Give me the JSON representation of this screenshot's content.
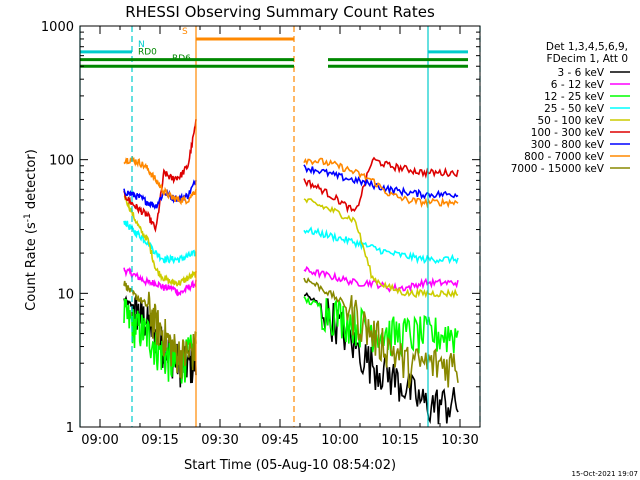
{
  "chart_data": {
    "type": "line",
    "title": "RHESSI Observing Summary Count Rates",
    "xlabel": "Start Time (05-Aug-10 08:54:02)",
    "ylabel_prefix": "Count Rate (s",
    "ylabel_sup": "-1",
    "ylabel_suffix": " detector",
    "ylabel_end": ")",
    "yscale": "log",
    "ylim": [
      1,
      1000
    ],
    "xlim_minutes": [
      -5.0,
      35.0
    ],
    "x_ticks": [
      "09:00",
      "09:15",
      "09:30",
      "09:45",
      "10:00",
      "10:15",
      "10:30"
    ],
    "x_tick_minutes": [
      0,
      15,
      30,
      45,
      60,
      75,
      90
    ],
    "y_ticks": [
      "1",
      "10",
      "100",
      "1000"
    ],
    "y_tick_values": [
      1,
      10,
      100,
      1000
    ],
    "legend_header": [
      "Det 1,3,4,5,6,9,",
      "FDecim 1, Att 0"
    ],
    "series": [
      {
        "name": "3 - 6 keV",
        "color": "#000000"
      },
      {
        "name": "6 - 12 keV",
        "color": "#ff00ff"
      },
      {
        "name": "12 - 25 keV",
        "color": "#00ff00"
      },
      {
        "name": "25 - 50 keV",
        "color": "#00ffff"
      },
      {
        "name": "50 - 100 keV",
        "color": "#cccc00"
      },
      {
        "name": "100 - 300 keV",
        "color": "#dd0000"
      },
      {
        "name": "300 - 800 keV",
        "color": "#0000ff"
      },
      {
        "name": "800 - 7000 keV",
        "color": "#ff8800"
      },
      {
        "name": "7000 - 15000 keV",
        "color": "#888800"
      }
    ],
    "segments": [
      {
        "start_min": 6.0,
        "end_min": 24.0,
        "values": {
          "3 - 6 keV": [
            9,
            8,
            7,
            6,
            5,
            4,
            3.5,
            3,
            3,
            3
          ],
          "6 - 12 keV": [
            15,
            14,
            13,
            12,
            12,
            11,
            11,
            10,
            11,
            12
          ],
          "12 - 25 keV": [
            7,
            6,
            5.5,
            5,
            4,
            3.5,
            3,
            3,
            3.5,
            4
          ],
          "25 - 50 keV": [
            35,
            30,
            27,
            24,
            20,
            18,
            18,
            18,
            19,
            20
          ],
          "50 - 100 keV": [
            55,
            40,
            30,
            25,
            15,
            13,
            12,
            12,
            13,
            14
          ],
          "100 - 300 keV": [
            55,
            47,
            42,
            38,
            30,
            80,
            72,
            75,
            90,
            190
          ],
          "300 - 800 keV": [
            58,
            55,
            52,
            48,
            45,
            57,
            52,
            51,
            54,
            70
          ],
          "800 - 7000 keV": [
            100,
            100,
            95,
            85,
            70,
            58,
            52,
            50,
            50,
            60
          ],
          "7000 - 15000 keV": [
            12,
            10,
            9,
            8,
            6,
            5,
            4,
            3.5,
            3.5,
            4
          ]
        }
      },
      {
        "start_min": 51.0,
        "end_min": 89.5,
        "values": {
          "3 - 6 keV": [
            10,
            8,
            6,
            4,
            3,
            2.5,
            2,
            1.5,
            1.5,
            1.5
          ],
          "6 - 12 keV": [
            15,
            14,
            13,
            12,
            12,
            11,
            11,
            12,
            12,
            12
          ],
          "12 - 25 keV": [
            9,
            8,
            7,
            6,
            5.5,
            5,
            5,
            5,
            5,
            5
          ],
          "25 - 50 keV": [
            30,
            28,
            26,
            24,
            22,
            20,
            19,
            18,
            18,
            18
          ],
          "50 - 100 keV": [
            50,
            45,
            40,
            35,
            13,
            11,
            10,
            10,
            10,
            10
          ],
          "100 - 300 keV": [
            70,
            60,
            50,
            40,
            100,
            90,
            85,
            80,
            80,
            80
          ],
          "300 - 800 keV": [
            88,
            82,
            75,
            70,
            65,
            60,
            57,
            55,
            55,
            55
          ],
          "800 - 7000 keV": [
            100,
            97,
            90,
            80,
            70,
            55,
            50,
            48,
            48,
            48
          ],
          "7000 - 15000 keV": [
            13,
            11,
            9,
            7,
            5,
            4,
            3,
            3,
            3,
            3
          ]
        }
      }
    ],
    "vlines": [
      {
        "min": 24.0,
        "color": "#ff8800",
        "style": "solid"
      },
      {
        "min": 48.5,
        "color": "#ff8800",
        "style": "dash"
      },
      {
        "min": 8.0,
        "color": "#00cccc",
        "style": "dash"
      },
      {
        "min": 82.0,
        "color": "#00cccc",
        "style": "solid"
      },
      {
        "min": 95.0,
        "color": "#00cccc",
        "style": "dash"
      },
      {
        "min": -5.0,
        "color": "#00cccc",
        "style": "solid"
      }
    ],
    "flag_lines": [
      {
        "label": "S",
        "color": "#ff8800",
        "y_value": 800,
        "ranges": [
          [
            24.0,
            48.5
          ]
        ]
      },
      {
        "label": "N",
        "color": "#00cccc",
        "y_value": 640,
        "ranges": [
          [
            -5.0,
            8.0
          ],
          [
            82.0,
            92.0
          ]
        ]
      },
      {
        "label": "RD0",
        "color": "#008800",
        "y_value": 560,
        "ranges": [
          [
            -5.0,
            48.5
          ],
          [
            57.0,
            92.0
          ]
        ]
      },
      {
        "label": "RD6",
        "color": "#008800",
        "y_value": 500,
        "ranges": [
          [
            -5.0,
            48.5
          ],
          [
            57.0,
            92.0
          ]
        ]
      }
    ]
  },
  "footer_timestamp": "15-Oct-2021 19:07"
}
